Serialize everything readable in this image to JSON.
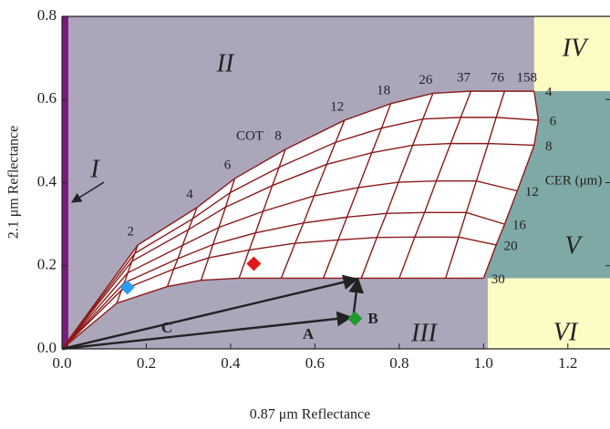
{
  "chart_data": {
    "type": "lut",
    "x_label": "0.87 μm Reflectance",
    "y_label": "2.1 μm Reflectance",
    "xlim": [
      0,
      1.3
    ],
    "ylim": [
      0,
      0.8
    ],
    "xticks": [
      {
        "value": 0,
        "label": "0.0"
      },
      0.2,
      0.4,
      0.6,
      0.8,
      {
        "value": 1,
        "label": "1.0"
      },
      1.2
    ],
    "yticks": [
      {
        "value": 0,
        "label": "0.0"
      },
      0.2,
      0.4,
      0.6,
      0.8
    ],
    "background": "#aca6bb",
    "mesh_color": "#8b1a1a",
    "cot_title": "COT",
    "cer_title": "CER (μm)",
    "cot_values": [
      2,
      4,
      6,
      8,
      12,
      18,
      26,
      37,
      76,
      158
    ],
    "cer_values": [
      4,
      6,
      8,
      12,
      16,
      20,
      30
    ],
    "grid_x": [
      [
        0.18,
        0.32,
        0.41,
        0.53,
        0.67,
        0.78,
        0.88,
        0.97,
        1.05,
        1.12
      ],
      [
        0.173,
        0.31,
        0.399,
        0.515,
        0.649,
        0.758,
        0.856,
        0.946,
        1.03,
        1.13
      ],
      [
        0.166,
        0.3,
        0.388,
        0.499,
        0.628,
        0.735,
        0.832,
        0.922,
        1.011,
        1.12
      ],
      [
        0.156,
        0.286,
        0.372,
        0.477,
        0.598,
        0.703,
        0.798,
        0.888,
        0.983,
        1.08
      ],
      [
        0.148,
        0.275,
        0.358,
        0.459,
        0.573,
        0.676,
        0.77,
        0.86,
        0.959,
        1.05
      ],
      [
        0.141,
        0.265,
        0.348,
        0.444,
        0.553,
        0.655,
        0.747,
        0.837,
        0.941,
        1.03
      ],
      [
        0.13,
        0.25,
        0.33,
        0.42,
        0.52,
        0.62,
        0.71,
        0.8,
        0.91,
        1.0
      ]
    ],
    "grid_y": [
      [
        0.25,
        0.34,
        0.41,
        0.48,
        0.55,
        0.59,
        0.615,
        0.62,
        0.62,
        0.62
      ],
      [
        0.23,
        0.313,
        0.376,
        0.437,
        0.497,
        0.531,
        0.553,
        0.557,
        0.557,
        0.55
      ],
      [
        0.211,
        0.287,
        0.341,
        0.393,
        0.444,
        0.472,
        0.49,
        0.494,
        0.494,
        0.49
      ],
      [
        0.183,
        0.249,
        0.292,
        0.331,
        0.368,
        0.388,
        0.401,
        0.404,
        0.404,
        0.38
      ],
      [
        0.159,
        0.217,
        0.251,
        0.279,
        0.303,
        0.317,
        0.326,
        0.328,
        0.328,
        0.3
      ],
      [
        0.141,
        0.192,
        0.219,
        0.238,
        0.254,
        0.262,
        0.268,
        0.269,
        0.269,
        0.25
      ],
      [
        0.11,
        0.15,
        0.165,
        0.17,
        0.17,
        0.17,
        0.17,
        0.17,
        0.17,
        0.17
      ]
    ],
    "regions": [
      {
        "label": "I",
        "color": "#7a1a7e",
        "x": [
          0,
          0.015
        ],
        "y": [
          0,
          0.8
        ]
      },
      {
        "label": "II",
        "color": "#aca6bb"
      },
      {
        "label": "III",
        "color": "#aca6bb"
      },
      {
        "label": "IV",
        "color": "#fdfbc4",
        "x": [
          1.12,
          1.3
        ],
        "y": [
          0.62,
          0.8
        ]
      },
      {
        "label": "V",
        "color": "#7fa9a7",
        "y": [
          0.17,
          0.62
        ]
      },
      {
        "label": "VI",
        "color": "#fdfbc4",
        "x": [
          1.01,
          1.3
        ],
        "y": [
          0,
          0.17
        ]
      }
    ],
    "points": [
      {
        "color": "#2a9df4",
        "x": 0.155,
        "y": 0.148
      },
      {
        "color": "#e01a1a",
        "x": 0.455,
        "y": 0.205
      },
      {
        "color": "#1f9a2e",
        "x": 0.695,
        "y": 0.073
      }
    ],
    "arrows": [
      {
        "label": "A",
        "x": [
          0,
          0.685
        ],
        "y": [
          0,
          0.076
        ]
      },
      {
        "label": "B",
        "x": [
          0.692,
          0.702
        ],
        "y": [
          0.085,
          0.168
        ]
      },
      {
        "label": "C",
        "x": [
          0,
          0.7
        ],
        "y": [
          0,
          0.168
        ]
      }
    ]
  }
}
